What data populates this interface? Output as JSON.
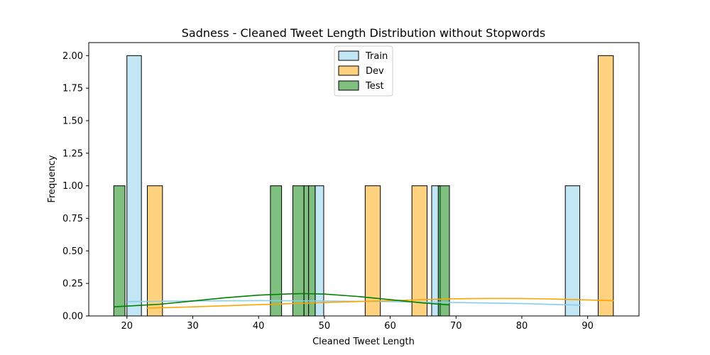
{
  "chart_data": {
    "type": "histogram",
    "title": "Sadness - Cleaned Tweet Length Distribution without Stopwords",
    "xlabel": "Cleaned Tweet Length",
    "ylabel": "Frequency",
    "xlim": [
      14.2,
      97.8
    ],
    "ylim": [
      0,
      2.1
    ],
    "xticks": [
      20,
      30,
      40,
      50,
      60,
      70,
      80,
      90
    ],
    "yticks": [
      0.0,
      0.25,
      0.5,
      0.75,
      1.0,
      1.25,
      1.5,
      1.75,
      2.0
    ],
    "ytick_labels": [
      "0.00",
      "0.25",
      "0.50",
      "0.75",
      "1.00",
      "1.25",
      "1.50",
      "1.75",
      "2.00"
    ],
    "legend_position": "top-center",
    "series": [
      {
        "name": "Train",
        "color": "#87ceeb",
        "bins": [
          {
            "x0": 20.0,
            "x1": 22.2,
            "count": 2
          },
          {
            "x0": 48.6,
            "x1": 49.9,
            "count": 1
          },
          {
            "x0": 66.3,
            "x1": 67.6,
            "count": 1
          },
          {
            "x0": 86.6,
            "x1": 88.8,
            "count": 1
          }
        ],
        "kde": [
          [
            20,
            0.11
          ],
          [
            30,
            0.115
          ],
          [
            40,
            0.118
          ],
          [
            50,
            0.115
          ],
          [
            60,
            0.11
          ],
          [
            70,
            0.103
          ],
          [
            80,
            0.095
          ],
          [
            89,
            0.083
          ]
        ]
      },
      {
        "name": "Dev",
        "color": "#ffa500",
        "bins": [
          {
            "x0": 23.1,
            "x1": 25.4,
            "count": 1
          },
          {
            "x0": 56.2,
            "x1": 58.5,
            "count": 1
          },
          {
            "x0": 63.3,
            "x1": 65.6,
            "count": 1
          },
          {
            "x0": 91.6,
            "x1": 93.9,
            "count": 2
          }
        ],
        "kde": [
          [
            23,
            0.06
          ],
          [
            30,
            0.07
          ],
          [
            40,
            0.087
          ],
          [
            50,
            0.103
          ],
          [
            60,
            0.118
          ],
          [
            70,
            0.132
          ],
          [
            75,
            0.135
          ],
          [
            80,
            0.134
          ],
          [
            85,
            0.13
          ],
          [
            90,
            0.123
          ],
          [
            94,
            0.117
          ]
        ]
      },
      {
        "name": "Test",
        "color": "#008000",
        "bins": [
          {
            "x0": 18.0,
            "x1": 19.7,
            "count": 1
          },
          {
            "x0": 41.8,
            "x1": 43.5,
            "count": 1
          },
          {
            "x0": 45.2,
            "x1": 46.9,
            "count": 1
          },
          {
            "x0": 46.9,
            "x1": 47.6,
            "count": 1
          },
          {
            "x0": 47.6,
            "x1": 48.6,
            "count": 1
          },
          {
            "x0": 67.3,
            "x1": 69.0,
            "count": 1
          }
        ],
        "kde": [
          [
            18,
            0.07
          ],
          [
            25,
            0.09
          ],
          [
            30,
            0.115
          ],
          [
            35,
            0.14
          ],
          [
            40,
            0.16
          ],
          [
            45,
            0.17
          ],
          [
            47,
            0.172
          ],
          [
            50,
            0.168
          ],
          [
            55,
            0.15
          ],
          [
            60,
            0.125
          ],
          [
            65,
            0.1
          ],
          [
            69,
            0.085
          ]
        ]
      }
    ]
  }
}
